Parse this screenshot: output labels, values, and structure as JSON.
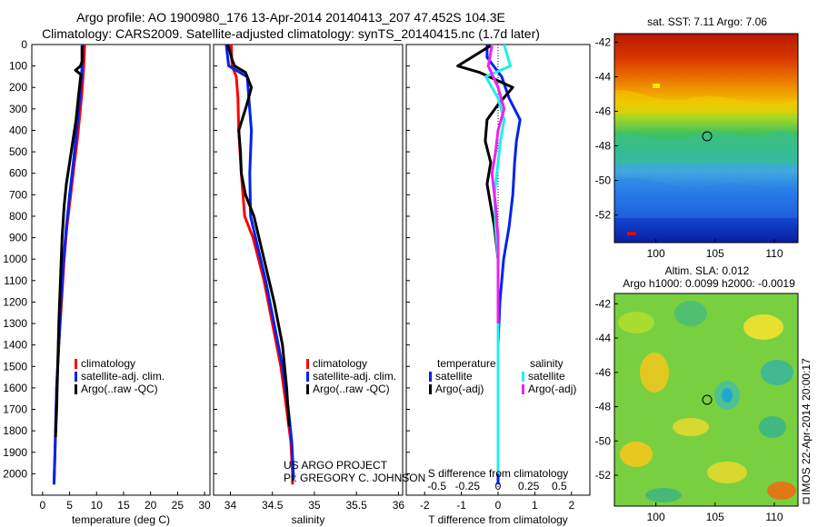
{
  "title_line1": "Argo profile: AO 1900980_176 13-Apr-2014 20140413_207 47.452S 104.3E",
  "title_line2": "Climatology: CARS2009. Satellite-adjusted climatology: synTS_20140415.nc (1.7d later)",
  "colors": {
    "climatology": "#ff0000",
    "satellite": "#0022ee",
    "argo": "#000000",
    "sat_sal": "#22eeee",
    "argo_sal": "#ee22ee"
  },
  "depth_ticks": [
    "0",
    "100",
    "200",
    "300",
    "400",
    "500",
    "600",
    "700",
    "800",
    "900",
    "1000",
    "1100",
    "1200",
    "1300",
    "1400",
    "1500",
    "1600",
    "1700",
    "1800",
    "1900",
    "2000"
  ],
  "chart_data": [
    {
      "type": "line",
      "xlabel": "temperature (deg C)",
      "xticks": [
        "0",
        "5",
        "10",
        "15",
        "20",
        "25",
        "30"
      ],
      "xlim": [
        -2,
        31
      ],
      "ylim": [
        0,
        2100
      ],
      "legend": [
        "climatology",
        "satellite-adj. clim.",
        "Argo(..raw -QC)"
      ],
      "series": [
        {
          "name": "climatology",
          "x": [
            7.8,
            7.7,
            7.5,
            7.2,
            6.8,
            6.4,
            5.9,
            5.2,
            4.5,
            4.0,
            3.5,
            3.0,
            2.6,
            2.3,
            2.1
          ],
          "y": [
            0,
            60,
            150,
            250,
            350,
            450,
            550,
            700,
            850,
            1000,
            1200,
            1400,
            1600,
            1900,
            2050
          ]
        },
        {
          "name": "satellite-adj. clim.",
          "x": [
            7.4,
            7.4,
            7.2,
            6.9,
            6.5,
            6.1,
            5.7,
            5.0,
            4.4,
            3.9,
            3.4,
            3.0,
            2.6,
            2.3,
            2.1
          ],
          "y": [
            0,
            60,
            150,
            250,
            350,
            450,
            550,
            700,
            850,
            1000,
            1200,
            1400,
            1600,
            1900,
            2050
          ]
        },
        {
          "name": "Argo(..raw -QC)",
          "x": [
            7.3,
            7.3,
            7.0,
            6.1,
            7.1,
            6.6,
            6.2,
            5.6,
            5.0,
            4.4,
            4.0,
            3.6,
            3.3,
            3.0,
            2.8,
            2.6,
            2.4
          ],
          "y": [
            5,
            80,
            100,
            120,
            140,
            250,
            350,
            450,
            550,
            650,
            750,
            900,
            1100,
            1300,
            1500,
            1700,
            1830
          ]
        }
      ]
    },
    {
      "type": "line",
      "xlabel": "salinity",
      "xticks": [
        "34",
        "34.5",
        "35",
        "35.5",
        "36"
      ],
      "xlim": [
        33.8,
        36.05
      ],
      "ylim": [
        0,
        2100
      ],
      "legend": [
        "climatology",
        "satellite-adj. clim.",
        "Argo(..raw -QC)"
      ],
      "series": [
        {
          "name": "climatology",
          "x": [
            34.01,
            34.02,
            34.07,
            34.09,
            34.1,
            34.13,
            34.17,
            34.27,
            34.4,
            34.5,
            34.6,
            34.67,
            34.72,
            34.74,
            34.74
          ],
          "y": [
            0,
            100,
            150,
            250,
            400,
            600,
            800,
            900,
            1100,
            1300,
            1500,
            1700,
            1850,
            2000,
            2050
          ]
        },
        {
          "name": "satellite-adj. clim.",
          "x": [
            33.95,
            33.98,
            34.2,
            34.22,
            34.25,
            34.23,
            34.24,
            34.3,
            34.42,
            34.52,
            34.62,
            34.69,
            34.73,
            34.75,
            34.75
          ],
          "y": [
            0,
            100,
            150,
            250,
            400,
            600,
            800,
            900,
            1100,
            1300,
            1500,
            1700,
            1850,
            2000,
            2030
          ]
        },
        {
          "name": "Argo(..raw -QC)",
          "x": [
            33.97,
            34.02,
            34.05,
            34.18,
            34.25,
            34.21,
            34.18,
            34.1,
            34.12,
            34.13,
            34.18,
            34.28,
            34.4,
            34.52,
            34.62,
            34.67,
            34.7
          ],
          "y": [
            0,
            70,
            100,
            130,
            200,
            260,
            300,
            400,
            500,
            600,
            700,
            800,
            1000,
            1200,
            1400,
            1600,
            1780
          ]
        }
      ]
    },
    {
      "type": "line",
      "xlabel": "T difference from climatology",
      "top_label": "S difference from climatology",
      "xticks": [
        "-2",
        "-1",
        "0",
        "1",
        "2"
      ],
      "s_ticks": [
        "-0.5",
        "-0.25",
        "0",
        "0.25",
        "0.5"
      ],
      "xlim": [
        -2.5,
        2.5
      ],
      "ylim": [
        0,
        2100
      ],
      "legend_headers": [
        "temperature",
        "salinity"
      ],
      "legend": [
        "satellite",
        "Argo(-adj)",
        "satellite",
        "Argo(-adj)"
      ],
      "series": [
        {
          "name": "satellite",
          "group": "temperature",
          "x": [
            -0.3,
            -0.3,
            0.1,
            0.3,
            0.6,
            0.5,
            0.45,
            0.4,
            0.3,
            0.15,
            0.05,
            0.0,
            0.0,
            0.0,
            0.0
          ],
          "y": [
            0,
            60,
            150,
            250,
            350,
            450,
            550,
            700,
            850,
            1000,
            1200,
            1400,
            1600,
            1900,
            2050
          ]
        },
        {
          "name": "Argo(-adj)",
          "group": "temperature",
          "x": [
            -0.2,
            -1.1,
            -0.5,
            0.4,
            0.0,
            -0.3,
            -0.35,
            -0.2,
            -0.3,
            -0.2,
            -0.1,
            0.0,
            0.0,
            0.0,
            0.0
          ],
          "y": [
            5,
            100,
            130,
            200,
            280,
            350,
            450,
            550,
            650,
            750,
            850,
            1000,
            1200,
            1400,
            1600
          ]
        },
        {
          "name": "satellite",
          "group": "salinity",
          "x": [
            0.05,
            0.1,
            -0.1,
            0.0,
            0.05,
            0.02,
            0.0,
            -0.03,
            -0.02,
            0.0,
            0.0,
            0.0,
            0.0
          ],
          "y": [
            0,
            100,
            150,
            250,
            350,
            450,
            550,
            700,
            850,
            1000,
            1300,
            1600,
            2000
          ]
        },
        {
          "name": "Argo(-adj)",
          "group": "salinity",
          "x": [
            -0.05,
            -0.08,
            0.0,
            0.05,
            0.0,
            -0.02,
            -0.05,
            -0.02,
            0.0,
            0.0,
            0.0
          ],
          "y": [
            5,
            100,
            200,
            300,
            400,
            500,
            600,
            750,
            900,
            1100,
            1300
          ]
        }
      ]
    },
    {
      "type": "heatmap",
      "title": "sat. SST: 7.11  Argo: 7.06",
      "xticks": [
        "100",
        "105",
        "110"
      ],
      "yticks": [
        "-42",
        "-44",
        "-46",
        "-48",
        "-50",
        "-52"
      ],
      "marker": {
        "lon": 104.3,
        "lat": -47.452
      }
    },
    {
      "type": "heatmap",
      "title_line1": "Altim. SLA: 0.012",
      "title_line2": "Argo h1000: 0.0099 h2000: -0.0019",
      "xticks": [
        "100",
        "105",
        "110"
      ],
      "yticks": [
        "-42",
        "-44",
        "-46",
        "-48",
        "-50",
        "-52"
      ],
      "marker": {
        "lon": 104.3,
        "lat": -47.452
      },
      "side_label": "IMOS 22-Apr-2014 20:00:17"
    }
  ],
  "credit_line1": "US ARGO PROJECT",
  "credit_line2": "PI: GREGORY C. JOHNSON"
}
